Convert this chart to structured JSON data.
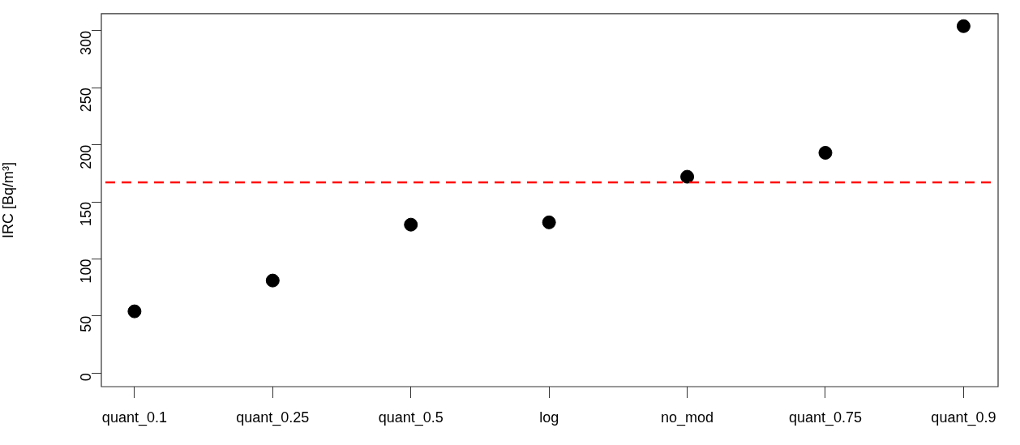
{
  "chart_data": {
    "type": "scatter",
    "ylabel": "IRC [Bq/m³]",
    "categories": [
      "quant_0.1",
      "quant_0.25",
      "quant_0.5",
      "log",
      "no_mod",
      "quant_0.75",
      "quant_0.9"
    ],
    "series": [
      {
        "color": "#000000",
        "values": [
          54,
          81,
          130,
          132,
          172,
          193,
          304
        ]
      }
    ],
    "ylim": [
      -12,
      315
    ],
    "yticks": [
      0,
      50,
      100,
      150,
      200,
      250,
      300
    ],
    "marker": "circle",
    "grid": false,
    "legend": false,
    "ref_lines": [
      {
        "axis": "y",
        "value": 167,
        "color": "#ff0000",
        "line_style": "dashed"
      }
    ]
  }
}
